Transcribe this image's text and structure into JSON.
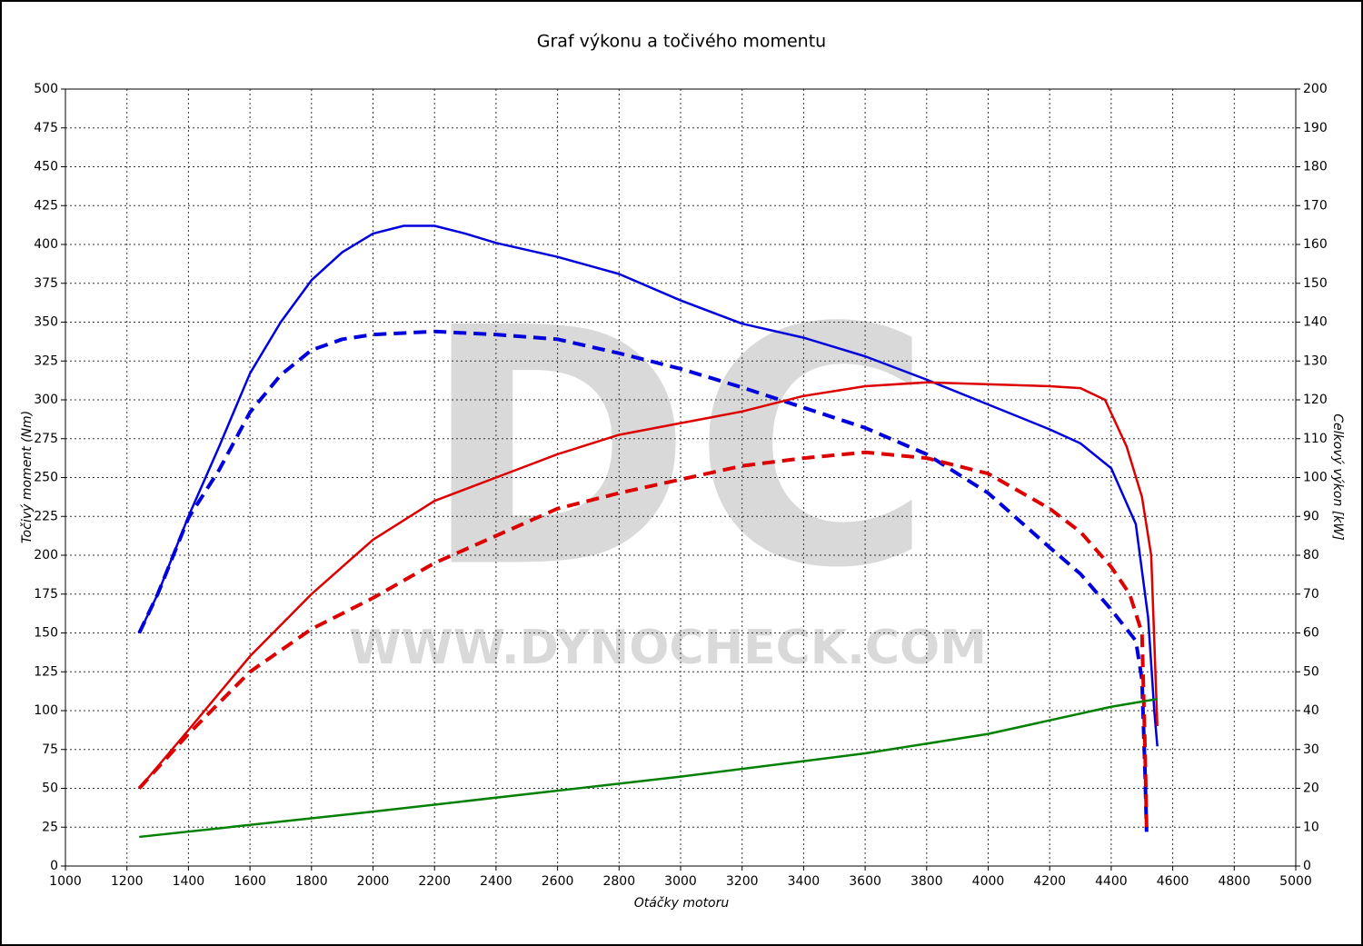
{
  "chart_data": {
    "type": "line",
    "title": "Graf výkonu a točivého momentu",
    "xlabel": "Otáčky motoru",
    "ylabel": "Točivý moment (Nm)",
    "y2label": "Celkový výkon [kW]",
    "watermark": [
      "DC",
      "WWW.DYNOCHECK.COM"
    ],
    "xlim": [
      1000,
      5000
    ],
    "xticks": [
      1000,
      1200,
      1400,
      1600,
      1800,
      2000,
      2200,
      2400,
      2600,
      2800,
      3000,
      3200,
      3400,
      3600,
      3800,
      4000,
      4200,
      4400,
      4600,
      4800,
      5000
    ],
    "ylim": [
      0,
      500
    ],
    "yticks": [
      0,
      25,
      50,
      75,
      100,
      125,
      150,
      175,
      200,
      225,
      250,
      275,
      300,
      325,
      350,
      375,
      400,
      425,
      450,
      475,
      500
    ],
    "y2lim": [
      0,
      200
    ],
    "y2ticks": [
      0,
      10,
      20,
      30,
      40,
      50,
      60,
      70,
      80,
      90,
      100,
      110,
      120,
      130,
      140,
      150,
      160,
      170,
      180,
      190,
      200
    ],
    "grid": true,
    "series": [
      {
        "color": "#0000dd",
        "dashed": false,
        "axis": "y",
        "x": [
          1240,
          1300,
          1400,
          1500,
          1600,
          1700,
          1800,
          1900,
          2000,
          2100,
          2200,
          2300,
          2400,
          2600,
          2800,
          3000,
          3200,
          3400,
          3600,
          3800,
          4000,
          4200,
          4300,
          4400,
          4480,
          4520,
          4540,
          4550
        ],
        "values": [
          150,
          175,
          225,
          270,
          317,
          350,
          377,
          395,
          407,
          412,
          412,
          407,
          401,
          392,
          381,
          364,
          349,
          340,
          328,
          313,
          297,
          281,
          272,
          256,
          220,
          160,
          100,
          77
        ]
      },
      {
        "color": "#0000dd",
        "dashed": true,
        "axis": "y",
        "x": [
          1240,
          1300,
          1400,
          1500,
          1600,
          1700,
          1800,
          1900,
          2000,
          2200,
          2400,
          2600,
          2800,
          3000,
          3200,
          3400,
          3600,
          3800,
          4000,
          4200,
          4300,
          4400,
          4480,
          4500,
          4510,
          4515
        ],
        "values": [
          150,
          175,
          224,
          255,
          292,
          316,
          332,
          339,
          342,
          344,
          342,
          339,
          330,
          320,
          308,
          295,
          282,
          265,
          240,
          205,
          188,
          165,
          145,
          120,
          60,
          22
        ]
      },
      {
        "color": "#dd0000",
        "dashed": false,
        "axis": "y2",
        "x": [
          1240,
          1400,
          1600,
          1800,
          2000,
          2200,
          2400,
          2600,
          2800,
          3000,
          3200,
          3400,
          3600,
          3800,
          4000,
          4200,
          4300,
          4380,
          4450,
          4500,
          4530,
          4550
        ],
        "values": [
          20,
          35,
          54,
          70,
          84,
          94,
          100,
          106,
          111,
          114,
          117,
          121,
          123.5,
          124.5,
          124,
          123.5,
          123,
          120,
          108,
          95,
          80,
          36
        ]
      },
      {
        "color": "#dd0000",
        "dashed": true,
        "axis": "y2",
        "x": [
          1240,
          1400,
          1600,
          1800,
          2000,
          2200,
          2400,
          2600,
          2800,
          3000,
          3200,
          3400,
          3600,
          3800,
          4000,
          4200,
          4300,
          4400,
          4460,
          4500,
          4510,
          4515
        ],
        "values": [
          20,
          34,
          50,
          61,
          69,
          78,
          85,
          92,
          96,
          99.5,
          103,
          105,
          106.5,
          105,
          101,
          92,
          86,
          77,
          70,
          60,
          30,
          10
        ]
      },
      {
        "color": "#008000",
        "dashed": false,
        "axis": "y2",
        "x": [
          1240,
          2000,
          3000,
          3600,
          4000,
          4400,
          4550
        ],
        "values": [
          7.5,
          14,
          23,
          29,
          34,
          41,
          43
        ]
      }
    ]
  }
}
